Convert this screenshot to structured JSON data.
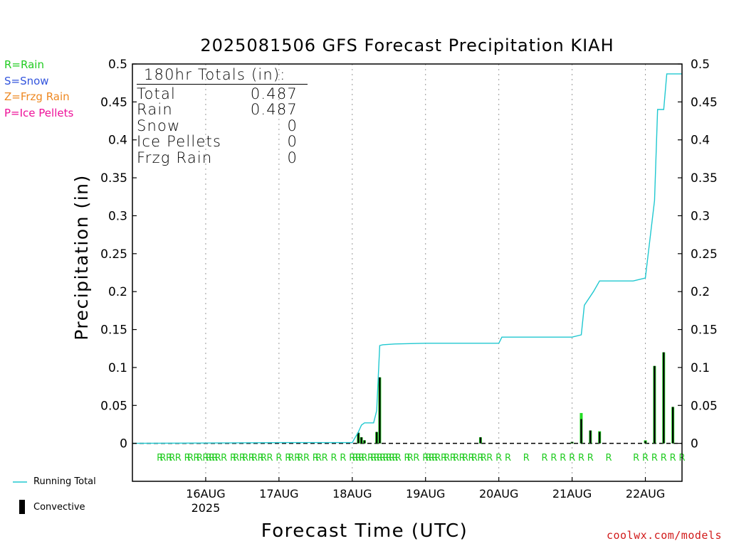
{
  "title": "2025081506 GFS Forecast Precipitation KIAH",
  "ylabel": "Precipitation (in)",
  "xlabel": "Forecast Time (UTC)",
  "credit": "coolwx.com/models",
  "type_legend": [
    {
      "label": "R=Rain",
      "color": "#22cc22"
    },
    {
      "label": "S=Snow",
      "color": "#3355dd"
    },
    {
      "label": "Z=Frzg Rain",
      "color": "#ee8822"
    },
    {
      "label": "P=Ice Pellets",
      "color": "#ee1199"
    }
  ],
  "series_legend": {
    "running_total": "Running Total",
    "convective": "Convective"
  },
  "totals": {
    "header": "180hr Totals (in):",
    "rows": [
      {
        "label": "Total",
        "value": "0.487"
      },
      {
        "label": "Rain",
        "value": "0.487"
      },
      {
        "label": "Snow",
        "value": "0"
      },
      {
        "label": "Ice Pellets",
        "value": "0"
      },
      {
        "label": "Frzg Rain",
        "value": "0"
      }
    ]
  },
  "colors": {
    "running_total": "#20c8d0",
    "rain_bar": "#22dd22",
    "convective_bar": "#000000",
    "rain_marker": "#22cc22",
    "grid": "#999999"
  },
  "chart_data": {
    "type": "bar",
    "x_unit": "forecast hour",
    "xlim": [
      -6,
      174
    ],
    "ylim": [
      -0.05,
      0.5
    ],
    "y_ticks": [
      0,
      0.05,
      0.1,
      0.15,
      0.2,
      0.25,
      0.3,
      0.35,
      0.4,
      0.45,
      0.5
    ],
    "y_tick_labels": [
      "0",
      "0.05",
      "0.1",
      "0.15",
      "0.2",
      "0.25",
      "0.3",
      "0.35",
      "0.4",
      "0.45",
      "0.5"
    ],
    "x_ticks": [
      18,
      42,
      66,
      90,
      114,
      138,
      162
    ],
    "x_tick_labels": [
      "16AUG",
      "17AUG",
      "18AUG",
      "19AUG",
      "20AUG",
      "21AUG",
      "22AUG"
    ],
    "x_sub_label": {
      "at": 18,
      "text": "2025"
    },
    "grid": "vertical dotted at day boundaries",
    "running_total": {
      "name": "Running Total",
      "x": [
        -6,
        42,
        66,
        68,
        69,
        70,
        71,
        72,
        73,
        74,
        75,
        76,
        80,
        90,
        96,
        114,
        115,
        138,
        141,
        142,
        145,
        147,
        149,
        150,
        158,
        162,
        165,
        166,
        168,
        169,
        171,
        173,
        174
      ],
      "y": [
        0,
        0.001,
        0.001,
        0.015,
        0.024,
        0.027,
        0.027,
        0.027,
        0.027,
        0.043,
        0.129,
        0.13,
        0.131,
        0.132,
        0.132,
        0.132,
        0.14,
        0.14,
        0.143,
        0.182,
        0.2,
        0.214,
        0.214,
        0.214,
        0.214,
        0.218,
        0.32,
        0.44,
        0.44,
        0.487,
        0.487,
        0.487,
        0.487
      ]
    },
    "precip_bars": {
      "name": "Rain",
      "x": [
        68,
        69,
        70,
        74,
        75,
        108,
        138,
        141,
        144,
        147,
        162,
        165,
        168,
        171
      ],
      "y": [
        0.014,
        0.008,
        0.004,
        0.015,
        0.087,
        0.008,
        0.002,
        0.04,
        0.017,
        0.016,
        0.004,
        0.102,
        0.12,
        0.048
      ]
    },
    "convective_bars": {
      "name": "Convective",
      "x": [
        68,
        69,
        70,
        74,
        75,
        108,
        138,
        141,
        144,
        147,
        162,
        165,
        168,
        171
      ],
      "y": [
        0.014,
        0.008,
        0.004,
        0.015,
        0.087,
        0.008,
        0.002,
        0.032,
        0.017,
        0.015,
        0.003,
        0.102,
        0.12,
        0.048
      ]
    },
    "rain_marker_label": "R",
    "rain_marker_hours": [
      3,
      4,
      6,
      7,
      9,
      12,
      13,
      15,
      16,
      18,
      19,
      20,
      21,
      22,
      24,
      27,
      28,
      30,
      31,
      33,
      34,
      36,
      37,
      39,
      42,
      45,
      46,
      48,
      49,
      51,
      54,
      55,
      57,
      60,
      63,
      66,
      67,
      68,
      69,
      70,
      72,
      73,
      74,
      75,
      76,
      77,
      78,
      79,
      80,
      81,
      84,
      85,
      87,
      90,
      91,
      92,
      93,
      94,
      96,
      97,
      99,
      100,
      102,
      103,
      105,
      106,
      108,
      109,
      111,
      114,
      117,
      123,
      129,
      132,
      135,
      138,
      141,
      144,
      150,
      159,
      162,
      165,
      168,
      171,
      174,
      177
    ]
  }
}
